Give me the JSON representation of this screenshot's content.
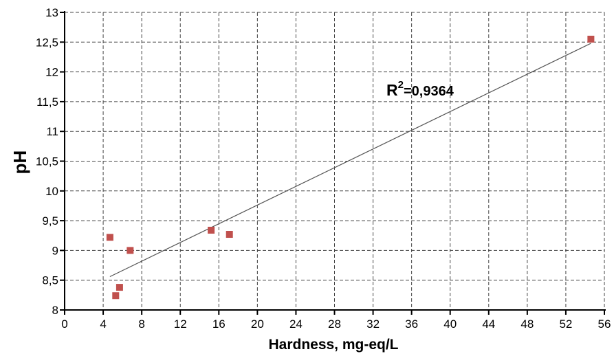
{
  "chart_data": {
    "type": "scatter",
    "xlabel": "Hardness, mg-eq/L",
    "ylabel": "pH",
    "xlim": [
      0,
      56
    ],
    "ylim": [
      8,
      13
    ],
    "x_ticks": [
      0,
      4,
      8,
      12,
      16,
      20,
      24,
      28,
      32,
      36,
      40,
      44,
      48,
      52,
      56
    ],
    "x_tick_labels": [
      "0",
      "4",
      "8",
      "12",
      "16",
      "20",
      "24",
      "28",
      "32",
      "36",
      "40",
      "44",
      "48",
      "52",
      "56"
    ],
    "y_ticks": [
      8,
      8.5,
      9,
      9.5,
      10,
      10.5,
      11,
      11.5,
      12,
      12.5,
      13
    ],
    "y_tick_labels": [
      "8",
      "8,5",
      "9",
      "9,5",
      "10",
      "10,5",
      "11",
      "11,5",
      "12",
      "12,5",
      "13"
    ],
    "grid": true,
    "grid_style": "dashed",
    "series": [
      {
        "marker": "square",
        "color": "#c0504d",
        "points": [
          {
            "x": 4.7,
            "y": 9.22
          },
          {
            "x": 5.3,
            "y": 8.24
          },
          {
            "x": 5.7,
            "y": 8.38
          },
          {
            "x": 6.8,
            "y": 9.0
          },
          {
            "x": 15.2,
            "y": 9.34
          },
          {
            "x": 17.1,
            "y": 9.27
          },
          {
            "x": 54.6,
            "y": 12.55
          }
        ]
      }
    ],
    "trendline": {
      "x_start": 4.7,
      "y_start": 8.56,
      "x_end": 54.6,
      "y_end": 12.48,
      "color": "#555555"
    },
    "annotation": {
      "base": "R",
      "superscript": "2",
      "rest": "=0,9364"
    }
  }
}
